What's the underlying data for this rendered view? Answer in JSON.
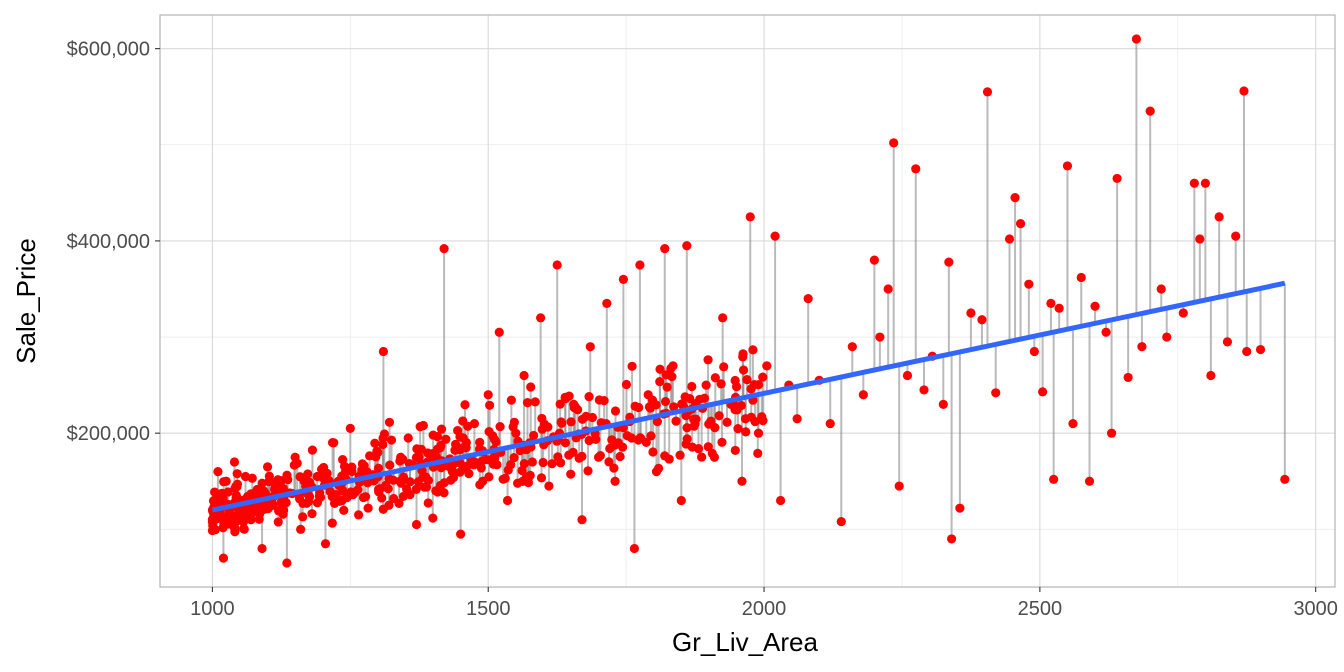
{
  "chart_data": {
    "type": "scatter",
    "title": "",
    "xlabel": "Gr_Liv_Area",
    "ylabel": "Sale_Price",
    "xlim": [
      905,
      3035
    ],
    "ylim": [
      40000,
      635000
    ],
    "x_ticks": [
      1000,
      1500,
      2000,
      2500,
      3000
    ],
    "x_tick_labels": [
      "1000",
      "1500",
      "2000",
      "2500",
      "3000"
    ],
    "y_ticks": [
      200000,
      400000,
      600000
    ],
    "y_tick_labels": [
      "$200,000",
      "$400,000",
      "$600,000"
    ],
    "grid": true,
    "legend": "none",
    "colors": {
      "points": "#ff0000",
      "residual_lines": "#8c8c8c",
      "fit_line": "#3366ff",
      "grid_major": "#d9d9d9",
      "grid_minor": "#ebebeb",
      "panel_border": "#b3b3b3"
    },
    "fit_line": {
      "x": [
        1000,
        2944
      ],
      "y": [
        120000,
        356000
      ]
    },
    "points": [
      [
        1010,
        160000
      ],
      [
        1020,
        70000
      ],
      [
        1025,
        150000
      ],
      [
        1030,
        120000
      ],
      [
        1040,
        170000
      ],
      [
        1050,
        130000
      ],
      [
        1060,
        155000
      ],
      [
        1070,
        110000
      ],
      [
        1080,
        140000
      ],
      [
        1090,
        80000
      ],
      [
        1100,
        165000
      ],
      [
        1110,
        125000
      ],
      [
        1120,
        145000
      ],
      [
        1135,
        65000
      ],
      [
        1150,
        175000
      ],
      [
        1160,
        100000
      ],
      [
        1175,
        135000
      ],
      [
        1190,
        155000
      ],
      [
        1205,
        85000
      ],
      [
        1220,
        190000
      ],
      [
        1235,
        130000
      ],
      [
        1250,
        205000
      ],
      [
        1265,
        115000
      ],
      [
        1280,
        160000
      ],
      [
        1300,
        180000
      ],
      [
        1310,
        285000
      ],
      [
        1320,
        125000
      ],
      [
        1340,
        150000
      ],
      [
        1355,
        195000
      ],
      [
        1370,
        105000
      ],
      [
        1390,
        170000
      ],
      [
        1405,
        140000
      ],
      [
        1420,
        392000
      ],
      [
        1435,
        160000
      ],
      [
        1450,
        95000
      ],
      [
        1460,
        185000
      ],
      [
        1475,
        210000
      ],
      [
        1490,
        150000
      ],
      [
        1500,
        240000
      ],
      [
        1510,
        175000
      ],
      [
        1520,
        305000
      ],
      [
        1535,
        130000
      ],
      [
        1550,
        200000
      ],
      [
        1565,
        260000
      ],
      [
        1580,
        170000
      ],
      [
        1595,
        320000
      ],
      [
        1610,
        145000
      ],
      [
        1625,
        375000
      ],
      [
        1640,
        190000
      ],
      [
        1655,
        230000
      ],
      [
        1670,
        110000
      ],
      [
        1685,
        290000
      ],
      [
        1700,
        175000
      ],
      [
        1715,
        335000
      ],
      [
        1730,
        150000
      ],
      [
        1745,
        360000
      ],
      [
        1760,
        195000
      ],
      [
        1765,
        80000
      ],
      [
        1775,
        375000
      ],
      [
        1790,
        240000
      ],
      [
        1805,
        160000
      ],
      [
        1820,
        392000
      ],
      [
        1835,
        270000
      ],
      [
        1850,
        130000
      ],
      [
        1860,
        395000
      ],
      [
        1875,
        210000
      ],
      [
        1895,
        250000
      ],
      [
        1910,
        175000
      ],
      [
        1925,
        320000
      ],
      [
        1940,
        230000
      ],
      [
        1960,
        150000
      ],
      [
        1975,
        425000
      ],
      [
        1990,
        200000
      ],
      [
        2005,
        270000
      ],
      [
        2020,
        405000
      ],
      [
        2030,
        130000
      ],
      [
        2045,
        250000
      ],
      [
        2060,
        215000
      ],
      [
        2080,
        340000
      ],
      [
        2100,
        255000
      ],
      [
        2120,
        210000
      ],
      [
        2140,
        108000
      ],
      [
        2160,
        290000
      ],
      [
        2180,
        240000
      ],
      [
        2200,
        380000
      ],
      [
        2210,
        300000
      ],
      [
        2225,
        350000
      ],
      [
        2235,
        502000
      ],
      [
        2245,
        145000
      ],
      [
        2260,
        260000
      ],
      [
        2275,
        475000
      ],
      [
        2290,
        245000
      ],
      [
        2305,
        280000
      ],
      [
        2325,
        230000
      ],
      [
        2335,
        378000
      ],
      [
        2340,
        90000
      ],
      [
        2355,
        122000
      ],
      [
        2375,
        325000
      ],
      [
        2395,
        318000
      ],
      [
        2405,
        555000
      ],
      [
        2420,
        242000
      ],
      [
        2445,
        402000
      ],
      [
        2455,
        445000
      ],
      [
        2465,
        418000
      ],
      [
        2480,
        355000
      ],
      [
        2490,
        285000
      ],
      [
        2505,
        243000
      ],
      [
        2520,
        335000
      ],
      [
        2525,
        152000
      ],
      [
        2535,
        330000
      ],
      [
        2550,
        478000
      ],
      [
        2560,
        210000
      ],
      [
        2575,
        362000
      ],
      [
        2590,
        150000
      ],
      [
        2600,
        332000
      ],
      [
        2620,
        305000
      ],
      [
        2630,
        200000
      ],
      [
        2640,
        465000
      ],
      [
        2660,
        258000
      ],
      [
        2675,
        610000
      ],
      [
        2685,
        290000
      ],
      [
        2700,
        535000
      ],
      [
        2720,
        350000
      ],
      [
        2730,
        300000
      ],
      [
        2760,
        325000
      ],
      [
        2780,
        460000
      ],
      [
        2790,
        402000
      ],
      [
        2800,
        460000
      ],
      [
        2810,
        260000
      ],
      [
        2825,
        425000
      ],
      [
        2840,
        295000
      ],
      [
        2855,
        405000
      ],
      [
        2870,
        556000
      ],
      [
        2875,
        285000
      ],
      [
        2900,
        287000
      ],
      [
        2944,
        152000
      ]
    ]
  }
}
